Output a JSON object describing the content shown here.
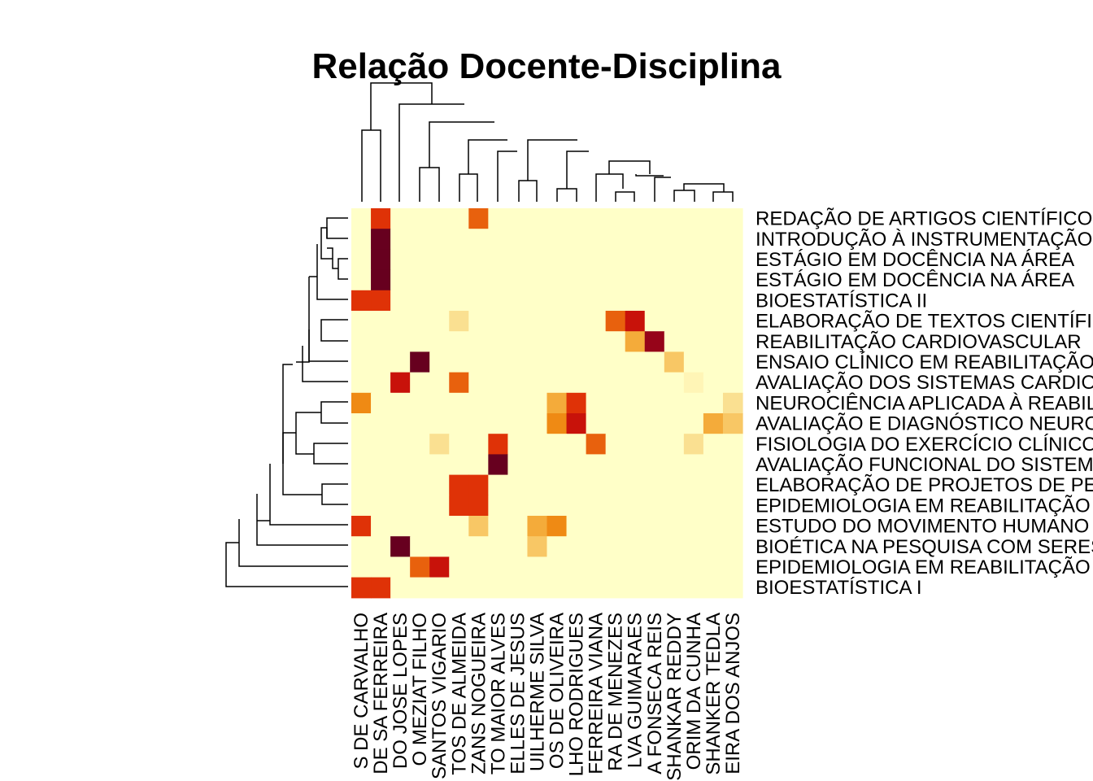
{
  "chart_data": {
    "type": "heatmap",
    "title": "Relação Docente-Disciplina",
    "rows": [
      "REDAÇÃO DE ARTIGOS CIENTÍFICOS",
      "INTRODUÇÃO À INSTRUMENTAÇÃO",
      "ESTÁGIO EM DOCÊNCIA NA ÁREA",
      "ESTÁGIO EM DOCÊNCIA NA ÁREA",
      "BIOESTATÍSTICA II",
      "ELABORAÇÃO DE TEXTOS CIENTÍFICOS",
      "REABILITAÇÃO CARDIOVASCULAR",
      "ENSAIO CLÍNICO EM REABILITAÇÃO",
      "AVALIAÇÃO DOS SISTEMAS CARDIORRESPIRATÓRIO",
      "NEUROCIÊNCIA APLICADA À REABILITAÇÃO",
      "AVALIAÇÃO E DIAGNÓSTICO NEUROLÓGICO",
      "FISIOLOGIA DO EXERCÍCIO CLÍNICO",
      "AVALIAÇÃO FUNCIONAL DO SISTEMA",
      "ELABORAÇÃO DE PROJETOS DE PESQUISA",
      "EPIDEMIOLOGIA EM REABILITAÇÃO",
      "ESTUDO DO MOVIMENTO HUMANO",
      "BIOÉTICA NA PESQUISA COM SERES HUMANOS",
      "EPIDEMIOLOGIA EM REABILITAÇÃO",
      "BIOESTATÍSTICA I"
    ],
    "columns": [
      "S DE CARVALHO",
      "DE SA FERREIRA",
      "DO JOSE LOPES",
      "O MEZIAT FILHO",
      "SANTOS VIGARIO",
      "TOS DE ALMEIDA",
      "ZANS NOGUEIRA",
      "TO MAIOR ALVES",
      "ELLES DE JESUS",
      "UILHERME SILVA",
      "OS DE OLIVEIRA",
      "LHO RODRIGUES",
      "FERREIRA VIANA",
      "RA DE MENEZES",
      "LVA GUIMARAES",
      "A FONSECA REIS",
      "SHANKAR REDDY",
      "ORIM DA CUNHA",
      "SHANKER TEDLA",
      "EIRA DOS ANJOS"
    ],
    "values": [
      [
        0,
        7,
        0,
        0,
        0,
        0,
        6,
        0,
        0,
        0,
        0,
        0,
        0,
        0,
        0,
        0,
        0,
        0,
        0,
        0
      ],
      [
        0,
        10,
        0,
        0,
        0,
        0,
        0,
        0,
        0,
        0,
        0,
        0,
        0,
        0,
        0,
        0,
        0,
        0,
        0,
        0
      ],
      [
        0,
        10,
        0,
        0,
        0,
        0,
        0,
        0,
        0,
        0,
        0,
        0,
        0,
        0,
        0,
        0,
        0,
        0,
        0,
        0
      ],
      [
        0,
        10,
        0,
        0,
        0,
        0,
        0,
        0,
        0,
        0,
        0,
        0,
        0,
        0,
        0,
        0,
        0,
        0,
        0,
        0
      ],
      [
        7,
        7,
        0,
        0,
        0,
        0,
        0,
        0,
        0,
        0,
        0,
        0,
        0,
        0,
        0,
        0,
        0,
        0,
        0,
        0
      ],
      [
        0,
        0,
        0,
        0,
        0,
        2,
        0,
        0,
        0,
        0,
        0,
        0,
        0,
        6,
        8,
        0,
        0,
        0,
        0,
        0
      ],
      [
        0,
        0,
        0,
        0,
        0,
        0,
        0,
        0,
        0,
        0,
        0,
        0,
        0,
        0,
        4,
        9,
        0,
        0,
        0,
        0
      ],
      [
        0,
        0,
        0,
        10,
        0,
        0,
        0,
        0,
        0,
        0,
        0,
        0,
        0,
        0,
        0,
        0,
        3,
        0,
        0,
        0
      ],
      [
        0,
        0,
        8,
        0,
        0,
        6,
        0,
        0,
        0,
        0,
        0,
        0,
        0,
        0,
        0,
        0,
        0,
        1,
        0,
        0
      ],
      [
        5,
        0,
        0,
        0,
        0,
        0,
        0,
        0,
        0,
        0,
        4,
        7,
        0,
        0,
        0,
        0,
        0,
        0,
        0,
        2
      ],
      [
        0,
        0,
        0,
        0,
        0,
        0,
        0,
        0,
        0,
        0,
        5,
        8,
        0,
        0,
        0,
        0,
        0,
        0,
        4,
        3
      ],
      [
        0,
        0,
        0,
        0,
        2,
        0,
        0,
        7,
        0,
        0,
        0,
        0,
        6,
        0,
        0,
        0,
        0,
        2,
        0,
        0
      ],
      [
        0,
        0,
        0,
        0,
        0,
        0,
        0,
        10,
        0,
        0,
        0,
        0,
        0,
        0,
        0,
        0,
        0,
        0,
        0,
        0
      ],
      [
        0,
        0,
        0,
        0,
        0,
        7,
        7,
        0,
        0,
        0,
        0,
        0,
        0,
        0,
        0,
        0,
        0,
        0,
        0,
        0
      ],
      [
        0,
        0,
        0,
        0,
        0,
        7,
        7,
        0,
        0,
        0,
        0,
        0,
        0,
        0,
        0,
        0,
        0,
        0,
        0,
        0
      ],
      [
        7,
        0,
        0,
        0,
        0,
        0,
        3,
        0,
        0,
        4,
        5,
        0,
        0,
        0,
        0,
        0,
        0,
        0,
        0,
        0
      ],
      [
        0,
        0,
        10,
        0,
        0,
        0,
        0,
        0,
        0,
        3,
        0,
        0,
        0,
        0,
        0,
        0,
        0,
        0,
        0,
        0
      ],
      [
        0,
        0,
        0,
        6,
        8,
        0,
        0,
        0,
        0,
        0,
        0,
        0,
        0,
        0,
        0,
        0,
        0,
        0,
        0,
        0
      ],
      [
        7,
        7,
        0,
        0,
        0,
        0,
        0,
        0,
        0,
        0,
        0,
        0,
        0,
        0,
        0,
        0,
        0,
        0,
        0,
        0
      ]
    ],
    "color_scale": [
      "#FFFFC8",
      "#FFF5B6",
      "#FAE091",
      "#F8C765",
      "#F4AB3A",
      "#EF8A14",
      "#E8610D",
      "#DF3207",
      "#C8120A",
      "#960419",
      "#67001F"
    ],
    "legend": "none",
    "grid": false
  }
}
